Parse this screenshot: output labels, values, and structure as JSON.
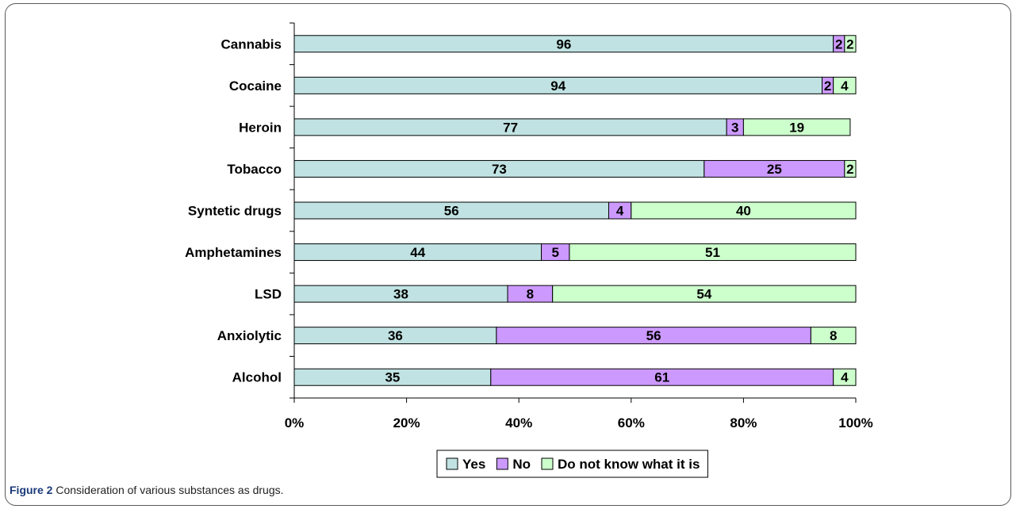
{
  "chart_data": {
    "type": "bar",
    "orientation": "horizontal",
    "stacked": "percent",
    "categories": [
      "Cannabis",
      "Cocaine",
      "Heroin",
      "Tobacco",
      "Syntetic drugs",
      "Amphetamines",
      "LSD",
      "Anxiolytic",
      "Alcohol"
    ],
    "series": [
      {
        "name": "Yes",
        "values": [
          96,
          94,
          77,
          73,
          56,
          44,
          38,
          36,
          35
        ],
        "color": "#c0e2e2"
      },
      {
        "name": "No",
        "values": [
          2,
          2,
          3,
          25,
          4,
          5,
          8,
          56,
          61
        ],
        "color": "#cc99ff"
      },
      {
        "name": "Do not know what it is",
        "values": [
          2,
          4,
          19,
          2,
          40,
          51,
          54,
          8,
          4
        ],
        "color": "#ccffcc"
      }
    ],
    "xlim": [
      0,
      100
    ],
    "xticks": [
      "0%",
      "20%",
      "40%",
      "60%",
      "80%",
      "100%"
    ],
    "xlabel": "",
    "ylabel": "",
    "grid": false,
    "legend_position": "bottom"
  },
  "caption": {
    "figure_number": "Figure 2",
    "text": "Consideration of various substances as drugs."
  }
}
